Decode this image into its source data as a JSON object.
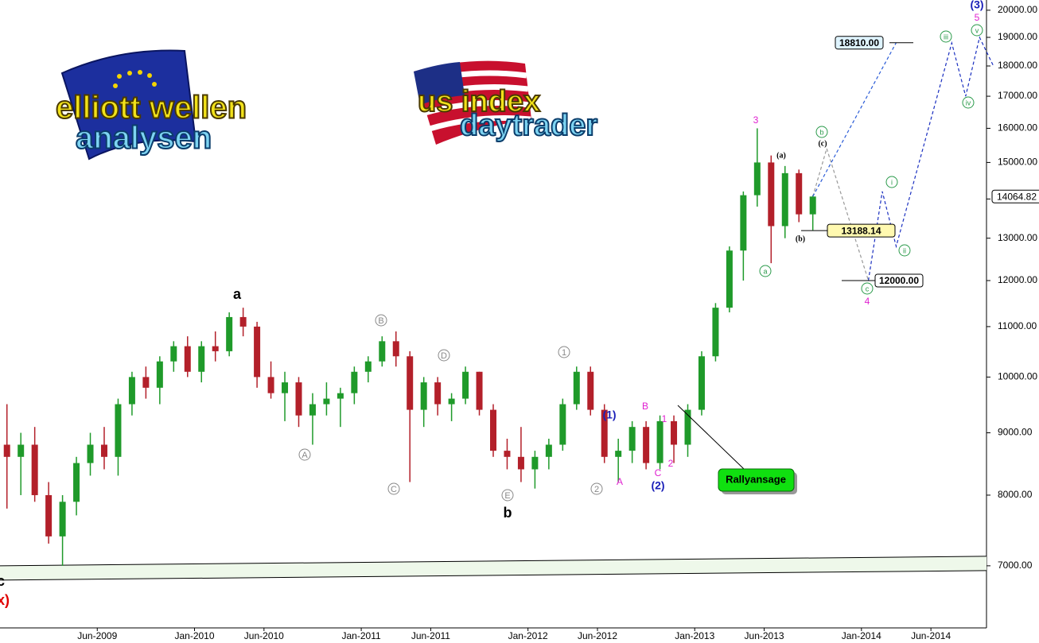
{
  "chart_data": {
    "type": "candlestick",
    "log_scale": true,
    "grid": false,
    "up_color": "#1f9a2a",
    "down_color": "#b3202a",
    "xlim": [
      "Nov-2008",
      "Oct-2014"
    ],
    "ylim": [
      6225,
      20390
    ],
    "xticks": [
      "Jun-2009",
      "Jan-2010",
      "Jun-2010",
      "Jan-2011",
      "Jun-2011",
      "Jan-2012",
      "Jun-2012",
      "Jan-2013",
      "Jun-2013",
      "Jan-2014",
      "Jun-2014"
    ],
    "yticks": [
      {
        "value": 7000,
        "label": "7000.00"
      },
      {
        "value": 8000,
        "label": "8000.00"
      },
      {
        "value": 9000,
        "label": "9000.00"
      },
      {
        "value": 10000,
        "label": "10000.00"
      },
      {
        "value": 11000,
        "label": "11000.00"
      },
      {
        "value": 12000,
        "label": "12000.00"
      },
      {
        "value": 13000,
        "label": "13000.00"
      },
      {
        "value": 14000,
        "label": "14000.00"
      },
      {
        "value": 15000,
        "label": "15000.00"
      },
      {
        "value": 16000,
        "label": "16000.00"
      },
      {
        "value": 17000,
        "label": "17000.00"
      },
      {
        "value": 18000,
        "label": "18000.00"
      },
      {
        "value": 19000,
        "label": "19000.00"
      },
      {
        "value": 20000,
        "label": "20000.00"
      }
    ],
    "x": [
      "Nov-2008",
      "Dec-2008",
      "Jan-2009",
      "Feb-2009",
      "Mar-2009",
      "Apr-2009",
      "May-2009",
      "Jun-2009",
      "Jul-2009",
      "Aug-2009",
      "Sep-2009",
      "Oct-2009",
      "Nov-2009",
      "Dec-2009",
      "Jan-2010",
      "Feb-2010",
      "Mar-2010",
      "Apr-2010",
      "May-2010",
      "Jun-2010",
      "Jul-2010",
      "Aug-2010",
      "Sep-2010",
      "Oct-2010",
      "Nov-2010",
      "Dec-2010",
      "Jan-2011",
      "Feb-2011",
      "Mar-2011",
      "Apr-2011",
      "May-2011",
      "Jun-2011",
      "Jul-2011",
      "Aug-2011",
      "Sep-2011",
      "Oct-2011",
      "Nov-2011",
      "Dec-2011",
      "Jan-2012",
      "Feb-2012",
      "Mar-2012",
      "Apr-2012",
      "May-2012",
      "Jun-2012",
      "Jul-2012",
      "Aug-2012",
      "Sep-2012",
      "Oct-2012",
      "Nov-2012",
      "Dec-2012",
      "Jan-2013",
      "Feb-2013",
      "Mar-2013",
      "Apr-2013",
      "May-2013",
      "Jun-2013",
      "Jul-2013",
      "Aug-2013",
      "Sep-2013"
    ],
    "open": [
      8800,
      8600,
      8800,
      8000,
      7400,
      7900,
      8500,
      8800,
      8600,
      9500,
      10000,
      9800,
      10300,
      10600,
      10100,
      10600,
      10500,
      11200,
      11000,
      10000,
      9700,
      9900,
      9300,
      9500,
      9600,
      9700,
      10100,
      10300,
      10700,
      10400,
      9400,
      9900,
      9500,
      9600,
      10100,
      9400,
      8700,
      8600,
      8400,
      8600,
      8800,
      9500,
      10100,
      9400,
      8600,
      8700,
      9100,
      8500,
      9200,
      8800,
      9400,
      10400,
      11400,
      12700,
      14100,
      15000,
      13300,
      14700,
      13600
    ],
    "high": [
      9500,
      9000,
      9100,
      8200,
      8000,
      8600,
      9000,
      9100,
      9600,
      10100,
      10200,
      10400,
      10700,
      10800,
      10700,
      10900,
      11300,
      11400,
      11100,
      10300,
      10100,
      10000,
      9700,
      9900,
      9800,
      10200,
      10400,
      10800,
      10900,
      10500,
      10000,
      10000,
      9700,
      10200,
      10100,
      9500,
      8900,
      9100,
      8700,
      8900,
      9600,
      10200,
      10200,
      9500,
      8900,
      9200,
      9200,
      9300,
      9300,
      9500,
      10500,
      11500,
      12800,
      14200,
      16000,
      15200,
      14900,
      14800,
      14100
    ],
    "low": [
      7800,
      8000,
      7900,
      7300,
      7000,
      7700,
      8300,
      8400,
      8300,
      9300,
      9600,
      9500,
      10100,
      10000,
      9900,
      10300,
      10400,
      10800,
      9800,
      9600,
      9200,
      9100,
      8800,
      9300,
      9100,
      9500,
      9900,
      10200,
      10200,
      8200,
      9100,
      9300,
      9200,
      9500,
      9300,
      8600,
      8400,
      8200,
      8100,
      8400,
      8700,
      9400,
      9300,
      8500,
      8200,
      8500,
      8400,
      8400,
      8500,
      8600,
      9300,
      10300,
      11300,
      12000,
      13800,
      12400,
      13000,
      13400,
      13200
    ],
    "close": [
      8600,
      8800,
      8000,
      7400,
      7900,
      8500,
      8800,
      8600,
      9500,
      10000,
      9800,
      10300,
      10600,
      10100,
      10600,
      10500,
      11200,
      11000,
      10000,
      9700,
      9900,
      9300,
      9500,
      9600,
      9700,
      10100,
      10300,
      10700,
      10400,
      9400,
      9900,
      9500,
      9600,
      10100,
      9400,
      8700,
      8600,
      8400,
      8600,
      8800,
      9500,
      10100,
      9400,
      8600,
      8700,
      9100,
      8500,
      9200,
      8800,
      9400,
      10400,
      11400,
      12700,
      14100,
      15000,
      13300,
      14700,
      13600,
      14064.82
    ],
    "channel": {
      "upper": [
        7000,
        7127
      ],
      "lower": [
        6813,
        6937
      ],
      "fill": "#eef8ea"
    },
    "projections": [
      {
        "color": "#999999",
        "x": [
          "Sep-2013",
          "Oct-2013",
          "Jan-2014"
        ],
        "values": [
          14064.82,
          15400,
          12000
        ]
      },
      {
        "color": "#2a5bd7",
        "x": [
          "Sep-2013",
          "Mar-2014"
        ],
        "values": [
          14064.82,
          18810
        ]
      },
      {
        "color": "#1a2fc0",
        "x": [
          "Jan-2014",
          "Feb-2014",
          "Mar-2014",
          "Jul-2014",
          "Aug-2014",
          "Sep-2014",
          "Oct-2014"
        ],
        "values": [
          12000,
          14200,
          12800,
          18800,
          17000,
          19000,
          18000
        ]
      }
    ],
    "levels": [
      {
        "label": "18810.00",
        "value": 18810
      },
      {
        "label": "13188.14",
        "value": 13188.14
      },
      {
        "label": "12000.00",
        "value": 12000
      },
      {
        "label": "14064.82",
        "value": 14064.82
      }
    ],
    "annotations": [
      "a",
      "b",
      "A",
      "B",
      "C",
      "D",
      "E",
      "1",
      "2",
      "(1)",
      "(2)",
      "A",
      "B",
      "C",
      "1",
      "2",
      "3",
      "(a)",
      "(b)",
      "(c)",
      "a",
      "b",
      "c",
      "4",
      "i",
      "ii",
      "iii",
      "iv",
      "v",
      "5",
      "(3)",
      "c",
      "x)"
    ],
    "callout": "Rallyansage",
    "logos": [
      "elliott wellen",
      "analysen",
      "us index",
      "daytrader"
    ]
  }
}
